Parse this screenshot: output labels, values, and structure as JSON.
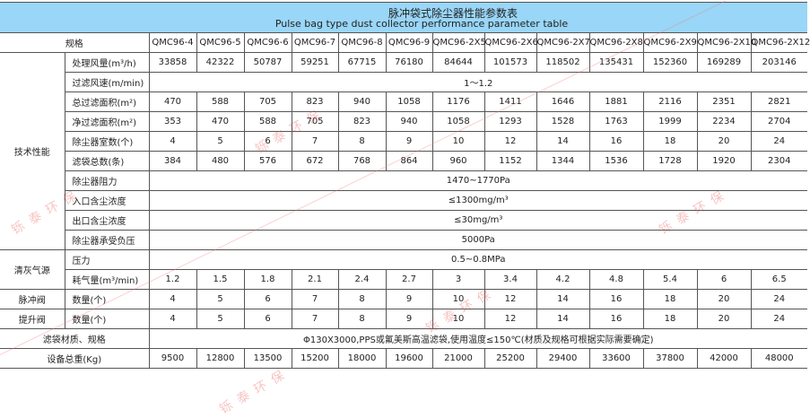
{
  "title": {
    "cn": "脉冲袋式除尘器性能参数表",
    "en": "Pulse bag type dust collector performance parameter table"
  },
  "watermark": "铄泰环保",
  "header": {
    "label": "规格",
    "models": [
      "QMC96-4",
      "QMC96-5",
      "QMC96-6",
      "QMC96-7",
      "QMC96-8",
      "QMC96-9",
      "QMC96-2X5",
      "QMC96-2X6",
      "QMC96-2X7",
      "QMC96-2X8",
      "QMC96-2X9",
      "QMC96-2X10",
      "QMC96-2X12"
    ]
  },
  "groups": {
    "tech": "技术性能",
    "air": "清灰气源",
    "pulse": "脉冲阀",
    "lift": "提升阀"
  },
  "rows": [
    {
      "label": "处理风量(m³/h)",
      "values": [
        "33858",
        "42322",
        "50787",
        "59251",
        "67715",
        "76180",
        "84644",
        "101573",
        "118502",
        "135431",
        "152360",
        "169289",
        "203146"
      ]
    },
    {
      "label": "过滤风速(m/min)",
      "span": "1～1.2"
    },
    {
      "label": "总过滤面积(m²)",
      "values": [
        "470",
        "588",
        "705",
        "823",
        "940",
        "1058",
        "1176",
        "1411",
        "1646",
        "1881",
        "2116",
        "2351",
        "2821"
      ]
    },
    {
      "label": "净过滤面积(m²)",
      "values": [
        "353",
        "470",
        "588",
        "705",
        "823",
        "940",
        "1058",
        "1293",
        "1528",
        "1763",
        "1999",
        "2234",
        "2704"
      ]
    },
    {
      "label": "除尘器室数(个)",
      "values": [
        "4",
        "5",
        "6",
        "7",
        "8",
        "9",
        "10",
        "12",
        "14",
        "16",
        "18",
        "20",
        "24"
      ]
    },
    {
      "label": "滤袋总数(条)",
      "values": [
        "384",
        "480",
        "576",
        "672",
        "768",
        "864",
        "960",
        "1152",
        "1344",
        "1536",
        "1728",
        "1920",
        "2304"
      ]
    },
    {
      "label": "除尘器阻力",
      "span": "1470~1770Pa"
    },
    {
      "label": "入口含尘浓度",
      "span": "≤1300mg/m³"
    },
    {
      "label": "出口含尘浓度",
      "span": "≤30mg/m³"
    },
    {
      "label": "除尘器承受负压",
      "span": "5000Pa"
    },
    {
      "label": "压力",
      "span": "0.5~0.8MPa"
    },
    {
      "label": "耗气量(m³/min)",
      "values": [
        "1.2",
        "1.5",
        "1.8",
        "2.1",
        "2.4",
        "2.7",
        "3",
        "3.4",
        "4.2",
        "4.8",
        "5.4",
        "6",
        "6.5"
      ]
    },
    {
      "label": "数量(个)",
      "values": [
        "4",
        "5",
        "6",
        "7",
        "8",
        "9",
        "10",
        "12",
        "14",
        "16",
        "18",
        "20",
        "24"
      ]
    },
    {
      "label": "数量(个)",
      "values": [
        "4",
        "5",
        "6",
        "7",
        "8",
        "9",
        "10",
        "12",
        "14",
        "16",
        "18",
        "20",
        "24"
      ]
    },
    {
      "label": "滤袋材质、规格",
      "span": "Φ130X3000,PPS或氟美斯高温滤袋,使用温度≤150℃(材质及规格可根据实际需要确定)"
    },
    {
      "label": "设备总重(Kg)",
      "values": [
        "9500",
        "12800",
        "13500",
        "15200",
        "18000",
        "19600",
        "21000",
        "25200",
        "29400",
        "33600",
        "37800",
        "42000",
        "48000"
      ]
    }
  ]
}
